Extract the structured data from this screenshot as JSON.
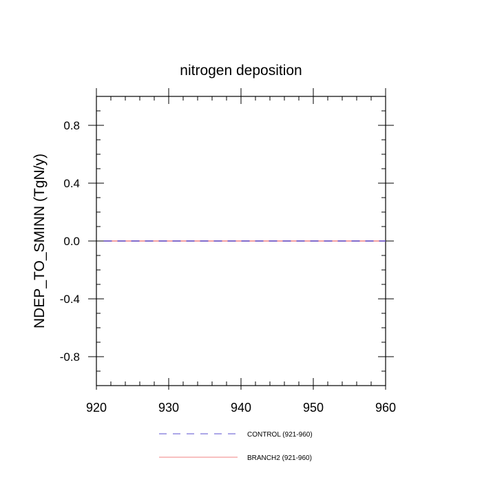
{
  "chart_data": {
    "type": "line",
    "title": "nitrogen deposition",
    "xlabel": "",
    "ylabel": "NDEP_TO_SMINN  (TgN/y)",
    "xlim": [
      920,
      960
    ],
    "ylim": [
      -1.0,
      1.0
    ],
    "x_ticks": [
      920,
      930,
      940,
      950,
      960
    ],
    "x_tick_labels": [
      "920",
      "930",
      "940",
      "950",
      "960"
    ],
    "y_ticks": [
      -0.8,
      -0.4,
      0.0,
      0.4,
      0.8
    ],
    "y_tick_labels": [
      "-0.8",
      "-0.4",
      "0.0",
      "0.4",
      "0.8"
    ],
    "grid": false,
    "legend_position": "bottom",
    "series": [
      {
        "name": "CONTROL (921-960)",
        "color": "#5a4fcf",
        "style": "dashed",
        "x": [
          921,
          960
        ],
        "y": [
          0.0,
          0.0
        ]
      },
      {
        "name": "BRANCH2 (921-960)",
        "color": "#f08080",
        "style": "solid",
        "x": [
          921,
          960
        ],
        "y": [
          0.0,
          0.0
        ]
      }
    ]
  }
}
